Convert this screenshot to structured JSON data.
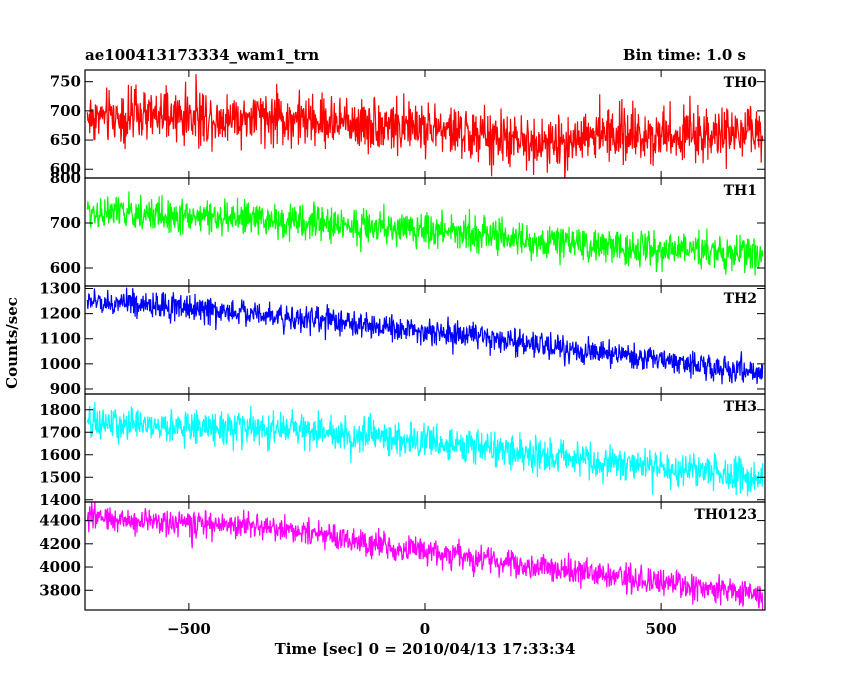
{
  "header": {
    "title": "ae100413173334_wam1_trn",
    "bin_time": "Bin time: 1.0 s"
  },
  "axes": {
    "xlabel": "Time [sec] 0 = 2010/04/13 17:33:34",
    "ylabel": "Counts/sec"
  },
  "chart_data": {
    "type": "line",
    "title": "ae100413173334_wam1_trn",
    "xlabel": "Time [sec] 0 = 2010/04/13 17:33:34",
    "ylabel": "Counts/sec",
    "xlim": [
      -720,
      720
    ],
    "x_ticks": [
      -500,
      0,
      500
    ],
    "x_tick_labels": [
      "−500",
      "0",
      "500"
    ],
    "bin_time_s": 1.0,
    "x_range": [
      -715,
      715
    ],
    "panels": [
      {
        "name": "TH0",
        "color": "#ff0000",
        "ylim": [
          585,
          770
        ],
        "yticks": [
          600,
          650,
          700,
          750
        ],
        "trend": [
          [
            -715,
            690
          ],
          [
            -500,
            690
          ],
          [
            -350,
            688
          ],
          [
            0,
            672
          ],
          [
            250,
            640
          ],
          [
            350,
            660
          ],
          [
            715,
            660
          ]
        ],
        "noise": 33
      },
      {
        "name": "TH1",
        "color": "#00ff00",
        "ylim": [
          560,
          800
        ],
        "yticks": [
          600,
          700,
          800
        ],
        "trend": [
          [
            -715,
            725
          ],
          [
            -400,
            710
          ],
          [
            0,
            685
          ],
          [
            100,
            680
          ],
          [
            200,
            660
          ],
          [
            715,
            630
          ]
        ],
        "noise": 28
      },
      {
        "name": "TH2",
        "color": "#0000ff",
        "ylim": [
          880,
          1310
        ],
        "yticks": [
          900,
          1000,
          1100,
          1200,
          1300
        ],
        "trend": [
          [
            -715,
            1250
          ],
          [
            -400,
            1210
          ],
          [
            0,
            1130
          ],
          [
            300,
            1060
          ],
          [
            715,
            960
          ]
        ],
        "noise": 38
      },
      {
        "name": "TH3",
        "color": "#00ffff",
        "ylim": [
          1390,
          1870
        ],
        "yticks": [
          1400,
          1500,
          1600,
          1700,
          1800
        ],
        "trend": [
          [
            -715,
            1740
          ],
          [
            -300,
            1710
          ],
          [
            0,
            1660
          ],
          [
            400,
            1560
          ],
          [
            715,
            1500
          ]
        ],
        "noise": 55
      },
      {
        "name": "TH0123",
        "color": "#ff00ff",
        "ylim": [
          3630,
          4560
        ],
        "yticks": [
          3800,
          4000,
          4200,
          4400
        ],
        "trend": [
          [
            -715,
            4430
          ],
          [
            -300,
            4330
          ],
          [
            0,
            4130
          ],
          [
            400,
            3920
          ],
          [
            715,
            3760
          ]
        ],
        "noise": 85
      }
    ]
  }
}
